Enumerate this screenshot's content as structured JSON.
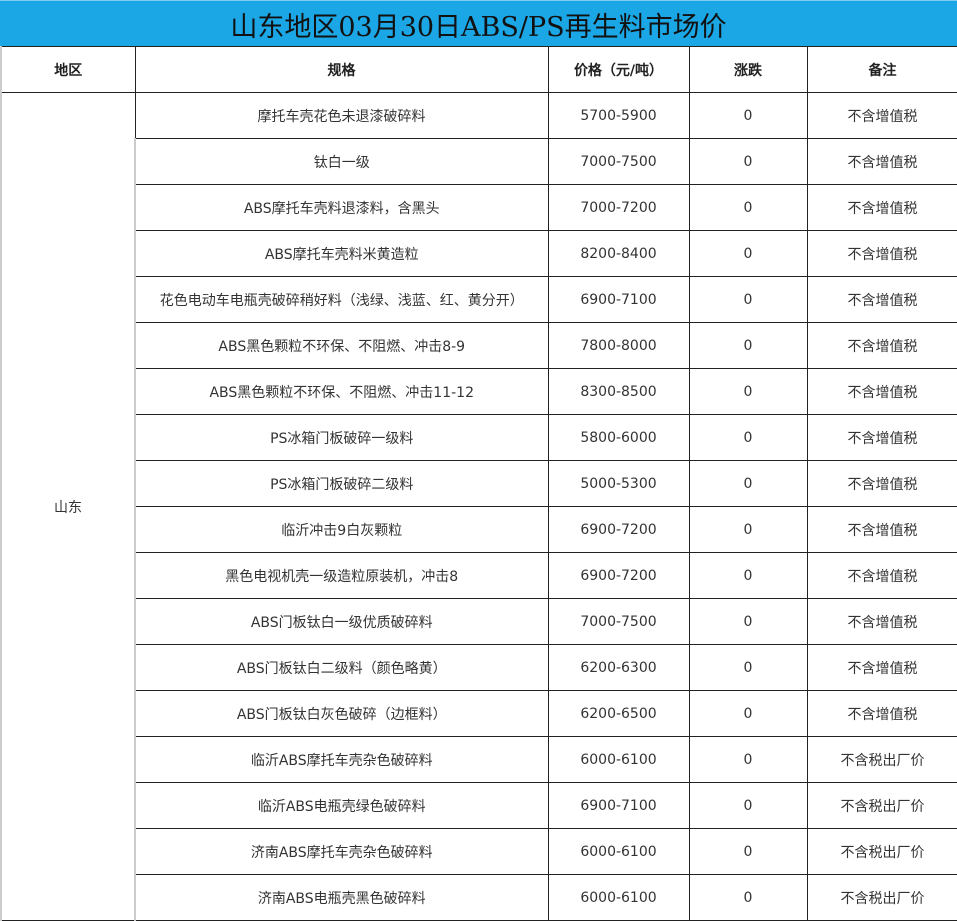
{
  "title": "山东地区03月30日ABS/PS再生料市场价",
  "headers": [
    "地区",
    "规格",
    "价格（元/吨）",
    "涨跌",
    "备注"
  ],
  "region": "山东",
  "rows": [
    [
      "摩托车壳花色未退漆破碎料",
      "5700-5900",
      "0",
      "不含增值税"
    ],
    [
      "钛白一级",
      "7000-7500",
      "0",
      "不含增值税"
    ],
    [
      "ABS摩托车壳料退漆料，含黑头",
      "7000-7200",
      "0",
      "不含增值税"
    ],
    [
      "ABS摩托车壳料米黄造粒",
      "8200-8400",
      "0",
      "不含增值税"
    ],
    [
      "花色电动车电瓶壳破碎稍好料（浅绿、浅蓝、红、黄分开）",
      "6900-7100",
      "0",
      "不含增值税"
    ],
    [
      "ABS黑色颗粒不环保、不阻燃、冲击8-9",
      "7800-8000",
      "0",
      "不含增值税"
    ],
    [
      "ABS黑色颗粒不环保、不阻燃、冲击11-12",
      "8300-8500",
      "0",
      "不含增值税"
    ],
    [
      "PS冰箱门板破碎一级料",
      "5800-6000",
      "0",
      "不含增值税"
    ],
    [
      "PS冰箱门板破碎二级料",
      "5000-5300",
      "0",
      "不含增值税"
    ],
    [
      "临沂冲击9白灰颗粒",
      "6900-7200",
      "0",
      "不含增值税"
    ],
    [
      "黑色电视机壳一级造粒原装机，冲击8",
      "6900-7200",
      "0",
      "不含增值税"
    ],
    [
      "ABS门板钛白一级优质破碎料",
      "7000-7500",
      "0",
      "不含增值税"
    ],
    [
      "ABS门板钛白二级料（颜色略黄）",
      "6200-6300",
      "0",
      "不含增值税"
    ],
    [
      "ABS门板钛白灰色破碎（边框料）",
      "6200-6500",
      "0",
      "不含增值税"
    ],
    [
      "临沂ABS摩托车壳杂色破碎料",
      "6000-6100",
      "0",
      "不含税出厂价"
    ],
    [
      "临沂ABS电瓶壳绿色破碎料",
      "6900-7100",
      "0",
      "不含税出厂价"
    ],
    [
      "济南ABS摩托车壳杂色破碎料",
      "6000-6100",
      "0",
      "不含税出厂价"
    ],
    [
      "济南ABS电瓶壳黑色破碎料",
      "6000-6100",
      "0",
      "不含税出厂价"
    ]
  ]
}
